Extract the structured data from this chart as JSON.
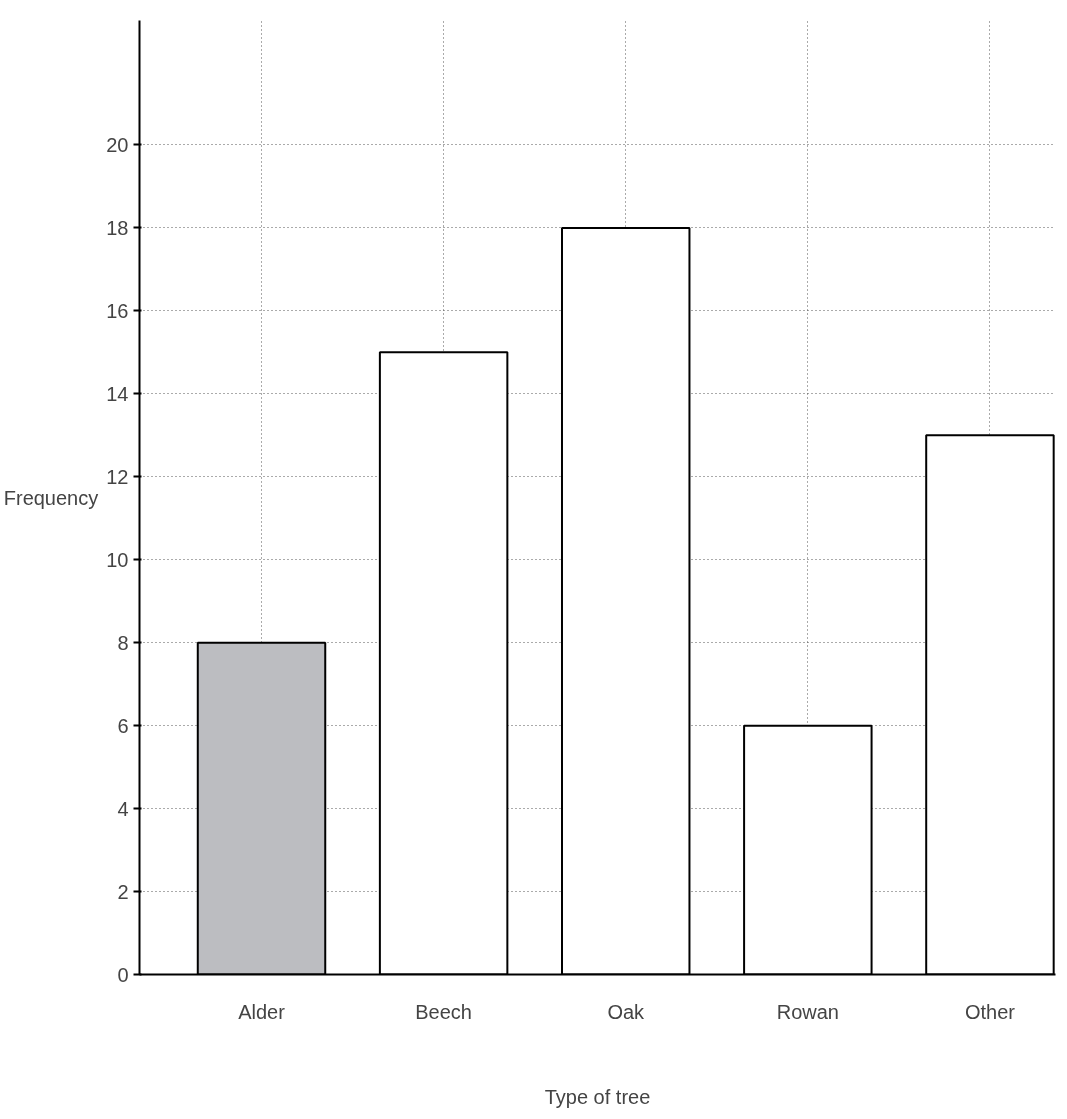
{
  "chart_data": {
    "type": "bar",
    "xlabel": "Type of tree",
    "ylabel": "Frequency",
    "categories": [
      "Alder",
      "Beech",
      "Oak",
      "Rowan",
      "Other"
    ],
    "values": [
      8,
      15,
      18,
      6,
      13
    ],
    "colors": [
      "#bcbdc1",
      "#ffffff",
      "#ffffff",
      "#ffffff",
      "#ffffff"
    ],
    "ylim": [
      0,
      23
    ],
    "yticks": [
      0,
      2,
      4,
      6,
      8,
      10,
      12,
      14,
      16,
      18,
      20
    ],
    "grid": true
  }
}
